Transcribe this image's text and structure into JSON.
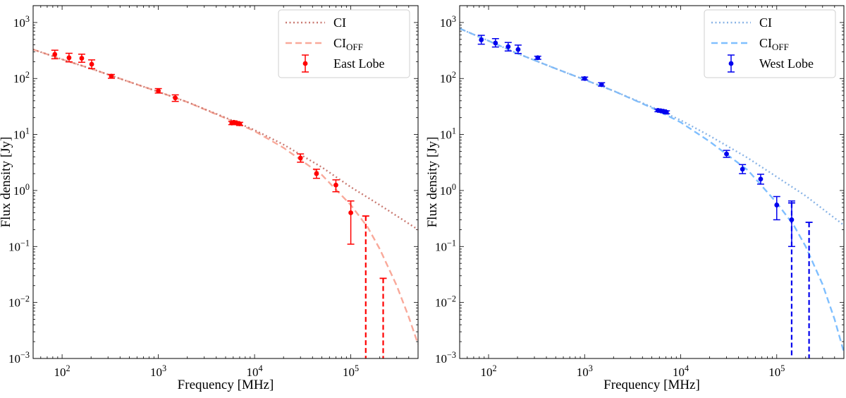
{
  "chart_data": [
    {
      "type": "scatter",
      "panel": "left",
      "xlabel": "Frequency [MHz]",
      "ylabel": "Flux density [Jy]",
      "xscale": "log",
      "yscale": "log",
      "xlim": [
        50,
        500000
      ],
      "ylim": [
        0.001,
        2000
      ],
      "xticks": [
        {
          "label": "10",
          "exp": "2"
        },
        {
          "label": "10",
          "exp": "3"
        },
        {
          "label": "10",
          "exp": "4"
        },
        {
          "label": "10",
          "exp": "5"
        }
      ],
      "yticks": [
        {
          "label": "10",
          "exp": "3"
        },
        {
          "label": "10",
          "exp": "2"
        },
        {
          "label": "10",
          "exp": "1"
        },
        {
          "label": "10",
          "exp": "0"
        },
        {
          "label": "10",
          "exp": "−1"
        },
        {
          "label": "10",
          "exp": "−2"
        },
        {
          "label": "10",
          "exp": "−3"
        }
      ],
      "legend": {
        "position": "top-right",
        "entries": [
          {
            "label": "CI",
            "sub": "",
            "style": "dotted"
          },
          {
            "label": "CI",
            "sub": "OFF",
            "style": "dashed"
          },
          {
            "label": "East Lobe",
            "sub": "",
            "style": "errorbar"
          }
        ]
      },
      "colors": {
        "data": "#ff0000",
        "ci": "#c97a72",
        "ci_off": "#f9a99a"
      },
      "series": [
        {
          "name": "East Lobe",
          "points": [
            {
              "x": 84,
              "y": 270,
              "lo": 225,
              "hi": 320
            },
            {
              "x": 118,
              "y": 235,
              "lo": 198,
              "hi": 282
            },
            {
              "x": 160,
              "y": 230,
              "lo": 195,
              "hi": 272
            },
            {
              "x": 203,
              "y": 180,
              "lo": 150,
              "hi": 215
            },
            {
              "x": 325,
              "y": 110,
              "lo": 101,
              "hi": 118
            },
            {
              "x": 1000,
              "y": 60,
              "lo": 55,
              "hi": 66
            },
            {
              "x": 1500,
              "y": 45,
              "lo": 39,
              "hi": 51
            },
            {
              "x": 5800,
              "y": 16,
              "lo": 15,
              "hi": 17
            },
            {
              "x": 6100,
              "y": 16.5,
              "lo": 15.5,
              "hi": 17.5
            },
            {
              "x": 6500,
              "y": 16,
              "lo": 15,
              "hi": 17
            },
            {
              "x": 7000,
              "y": 15.5,
              "lo": 14.5,
              "hi": 16.5
            },
            {
              "x": 30000,
              "y": 3.8,
              "lo": 3.2,
              "hi": 4.5
            },
            {
              "x": 44000,
              "y": 2.0,
              "lo": 1.65,
              "hi": 2.4
            },
            {
              "x": 70000,
              "y": 1.25,
              "lo": 0.95,
              "hi": 1.55
            },
            {
              "x": 100000,
              "y": 0.4,
              "lo": 0.11,
              "hi": 0.65
            }
          ],
          "upper_limits": [
            {
              "x": 143000,
              "y": 0.35
            },
            {
              "x": 217000,
              "y": 0.027
            }
          ]
        },
        {
          "name": "CI",
          "x": [
            50,
            100,
            200,
            500,
            1000,
            2000,
            5000,
            10000,
            20000,
            50000,
            100000,
            200000,
            500000
          ],
          "values": [
            330,
            220,
            150,
            87,
            58,
            38,
            20,
            12,
            6.6,
            2.6,
            1.15,
            0.55,
            0.2
          ]
        },
        {
          "name": "CI_OFF",
          "x": [
            50,
            100,
            200,
            500,
            1000,
            2000,
            5000,
            10000,
            20000,
            50000,
            100000,
            150000,
            200000,
            300000,
            400000,
            500000
          ],
          "values": [
            330,
            220,
            150,
            87,
            58,
            38,
            19.5,
            11.5,
            5.8,
            1.9,
            0.55,
            0.22,
            0.09,
            0.02,
            0.0055,
            0.0018
          ]
        }
      ]
    },
    {
      "type": "scatter",
      "panel": "right",
      "xlabel": "Frequency [MHz]",
      "ylabel": "Flux density [Jy]",
      "xscale": "log",
      "yscale": "log",
      "xlim": [
        50,
        500000
      ],
      "ylim": [
        0.001,
        2000
      ],
      "xticks": [
        {
          "label": "10",
          "exp": "2"
        },
        {
          "label": "10",
          "exp": "3"
        },
        {
          "label": "10",
          "exp": "4"
        },
        {
          "label": "10",
          "exp": "5"
        }
      ],
      "yticks": [
        {
          "label": "10",
          "exp": "3"
        },
        {
          "label": "10",
          "exp": "2"
        },
        {
          "label": "10",
          "exp": "1"
        },
        {
          "label": "10",
          "exp": "0"
        },
        {
          "label": "10",
          "exp": "−1"
        },
        {
          "label": "10",
          "exp": "−2"
        },
        {
          "label": "10",
          "exp": "−3"
        }
      ],
      "legend": {
        "position": "top-right",
        "entries": [
          {
            "label": "CI",
            "sub": "",
            "style": "dotted"
          },
          {
            "label": "CI",
            "sub": "OFF",
            "style": "dashed"
          },
          {
            "label": "West Lobe",
            "sub": "",
            "style": "errorbar"
          }
        ]
      },
      "colors": {
        "data": "#0000ee",
        "ci": "#8ab4e6",
        "ci_off": "#7fbfff"
      },
      "series": [
        {
          "name": "West Lobe",
          "points": [
            {
              "x": 84,
              "y": 490,
              "lo": 410,
              "hi": 590
            },
            {
              "x": 118,
              "y": 430,
              "lo": 365,
              "hi": 515
            },
            {
              "x": 160,
              "y": 370,
              "lo": 310,
              "hi": 440
            },
            {
              "x": 203,
              "y": 330,
              "lo": 280,
              "hi": 395
            },
            {
              "x": 325,
              "y": 235,
              "lo": 220,
              "hi": 250
            },
            {
              "x": 1000,
              "y": 100,
              "lo": 94,
              "hi": 106
            },
            {
              "x": 1500,
              "y": 78,
              "lo": 73,
              "hi": 84
            },
            {
              "x": 5800,
              "y": 27,
              "lo": 25.5,
              "hi": 28.5
            },
            {
              "x": 6200,
              "y": 26.5,
              "lo": 25,
              "hi": 28
            },
            {
              "x": 6600,
              "y": 26,
              "lo": 24.5,
              "hi": 27.5
            },
            {
              "x": 7100,
              "y": 25,
              "lo": 23.5,
              "hi": 26.5
            },
            {
              "x": 30000,
              "y": 4.5,
              "lo": 3.9,
              "hi": 5.2
            },
            {
              "x": 44000,
              "y": 2.4,
              "lo": 2.0,
              "hi": 2.9
            },
            {
              "x": 68000,
              "y": 1.6,
              "lo": 1.3,
              "hi": 1.95
            },
            {
              "x": 100000,
              "y": 0.55,
              "lo": 0.3,
              "hi": 0.78
            },
            {
              "x": 143000,
              "y": 0.3,
              "lo": 0.1,
              "hi": 0.65
            }
          ],
          "upper_limits": [
            {
              "x": 143000,
              "y": 0.6
            },
            {
              "x": 217000,
              "y": 0.27
            }
          ]
        },
        {
          "name": "CI",
          "x": [
            50,
            100,
            200,
            500,
            1000,
            2000,
            5000,
            10000,
            20000,
            50000,
            100000,
            200000,
            500000
          ],
          "values": [
            780,
            470,
            280,
            150,
            95,
            60,
            31,
            18,
            9.5,
            3.8,
            1.75,
            0.8,
            0.24
          ]
        },
        {
          "name": "CI_OFF",
          "x": [
            50,
            100,
            200,
            500,
            1000,
            2000,
            5000,
            10000,
            20000,
            50000,
            100000,
            150000,
            200000,
            300000,
            400000,
            500000
          ],
          "values": [
            780,
            470,
            280,
            150,
            95,
            60,
            30,
            16.5,
            7.5,
            2.3,
            0.6,
            0.24,
            0.1,
            0.021,
            0.005,
            0.0013
          ]
        }
      ]
    }
  ]
}
